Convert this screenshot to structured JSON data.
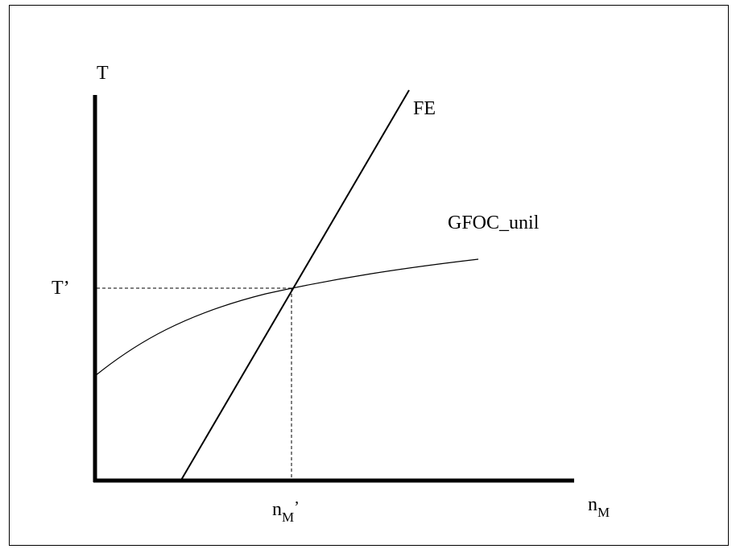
{
  "diagram": {
    "y_axis_label": "T",
    "x_axis_label": {
      "base": "n",
      "sub": "M"
    },
    "curves": [
      {
        "id": "fe",
        "label": "FE"
      },
      {
        "id": "gfoc",
        "label": "GFOC_unil"
      }
    ],
    "equilibrium": {
      "y_label": "T’",
      "x_label": {
        "base": "n",
        "sub": "M",
        "suffix": "’"
      }
    }
  },
  "colors": {
    "ink": "#000000",
    "background": "#ffffff"
  }
}
